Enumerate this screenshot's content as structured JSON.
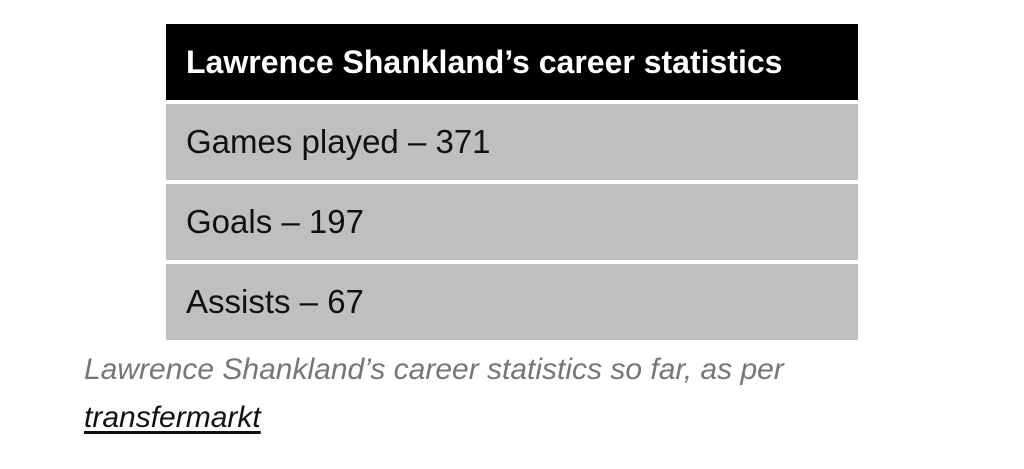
{
  "table": {
    "title": "Lawrence Shankland’s career statistics",
    "rows": [
      "Games played – 371",
      "Goals – 197",
      "Assists – 67"
    ]
  },
  "caption": {
    "text": "Lawrence Shankland’s career statistics so far, as per",
    "link_text": "transfermarkt"
  },
  "colors": {
    "header_bg": "#000000",
    "row_bg": "#bfbfbf",
    "caption_text": "#767676"
  }
}
